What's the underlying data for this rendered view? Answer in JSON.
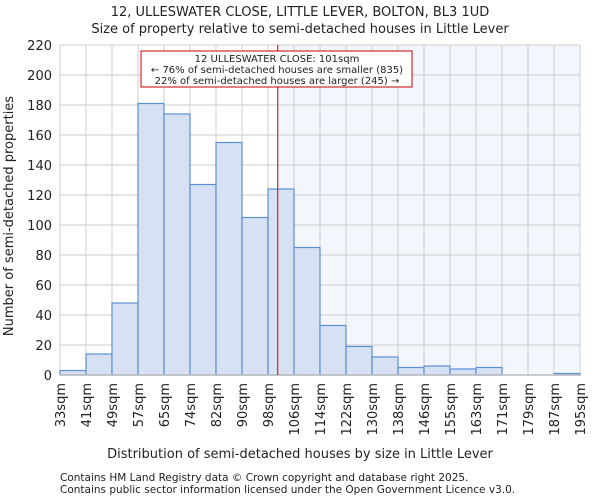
{
  "chart_data": {
    "type": "bar",
    "title": "12, ULLESWATER CLOSE, LITTLE LEVER, BOLTON, BL3 1UD",
    "subtitle": "Size of property relative to semi-detached houses in Little Lever",
    "xlabel": "Distribution of semi-detached houses by size in Little Lever",
    "ylabel": "Number of semi-detached properties",
    "tick_labels": [
      "33sqm",
      "41sqm",
      "49sqm",
      "57sqm",
      "65sqm",
      "74sqm",
      "82sqm",
      "90sqm",
      "98sqm",
      "106sqm",
      "114sqm",
      "122sqm",
      "130sqm",
      "138sqm",
      "146sqm",
      "155sqm",
      "163sqm",
      "171sqm",
      "179sqm",
      "187sqm",
      "195sqm"
    ],
    "values": [
      3,
      14,
      48,
      181,
      174,
      127,
      155,
      105,
      124,
      85,
      33,
      19,
      12,
      5,
      6,
      4,
      5,
      0,
      0,
      1
    ],
    "ylim": [
      0,
      220
    ],
    "yticks": [
      0,
      20,
      40,
      60,
      80,
      100,
      120,
      140,
      160,
      180,
      200,
      220
    ],
    "grid": true,
    "marker_value_index": 8.375,
    "annotation": [
      "12 ULLESWATER CLOSE: 101sqm",
      "← 76% of semi-detached houses are smaller (835)",
      "22% of semi-detached houses are larger (245) →"
    ],
    "colors": {
      "bar": "#d6e2f3",
      "bar_edge": "#5b8fd4",
      "marker": "#cc0000",
      "highlight": "#f3f6fd"
    }
  },
  "footer": [
    "Contains HM Land Registry data © Crown copyright and database right 2025.",
    "Contains public sector information licensed under the Open Government Licence v3.0."
  ]
}
